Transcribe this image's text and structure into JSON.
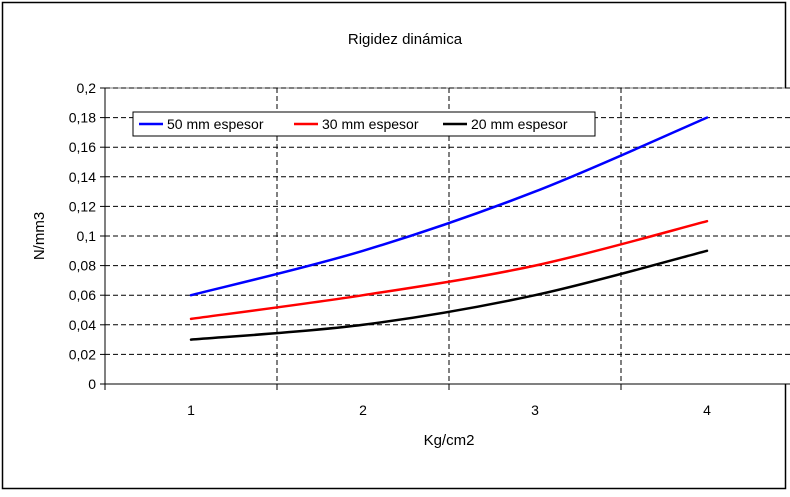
{
  "chart_data": {
    "type": "line",
    "title": "Rigidez dinámica",
    "xlabel": "Kg/cm2",
    "ylabel": "N/mm3",
    "categories": [
      "1",
      "2",
      "3",
      "4"
    ],
    "x": [
      1,
      2,
      3,
      4
    ],
    "xlim": [
      0.5,
      4.5
    ],
    "ylim": [
      0,
      0.2
    ],
    "yticks": [
      "0",
      "0,02",
      "0,04",
      "0,06",
      "0,08",
      "0,1",
      "0,12",
      "0,14",
      "0,16",
      "0,18",
      "0,2"
    ],
    "grid": true,
    "legend_position": "top",
    "series": [
      {
        "name": "50 mm espesor",
        "color": "#0000ff",
        "values": [
          0.06,
          0.09,
          0.13,
          0.18
        ]
      },
      {
        "name": "30 mm espesor",
        "color": "#ff0000",
        "values": [
          0.044,
          0.06,
          0.08,
          0.11
        ]
      },
      {
        "name": "20 mm espesor",
        "color": "#000000",
        "values": [
          0.03,
          0.04,
          0.06,
          0.09
        ]
      }
    ]
  }
}
